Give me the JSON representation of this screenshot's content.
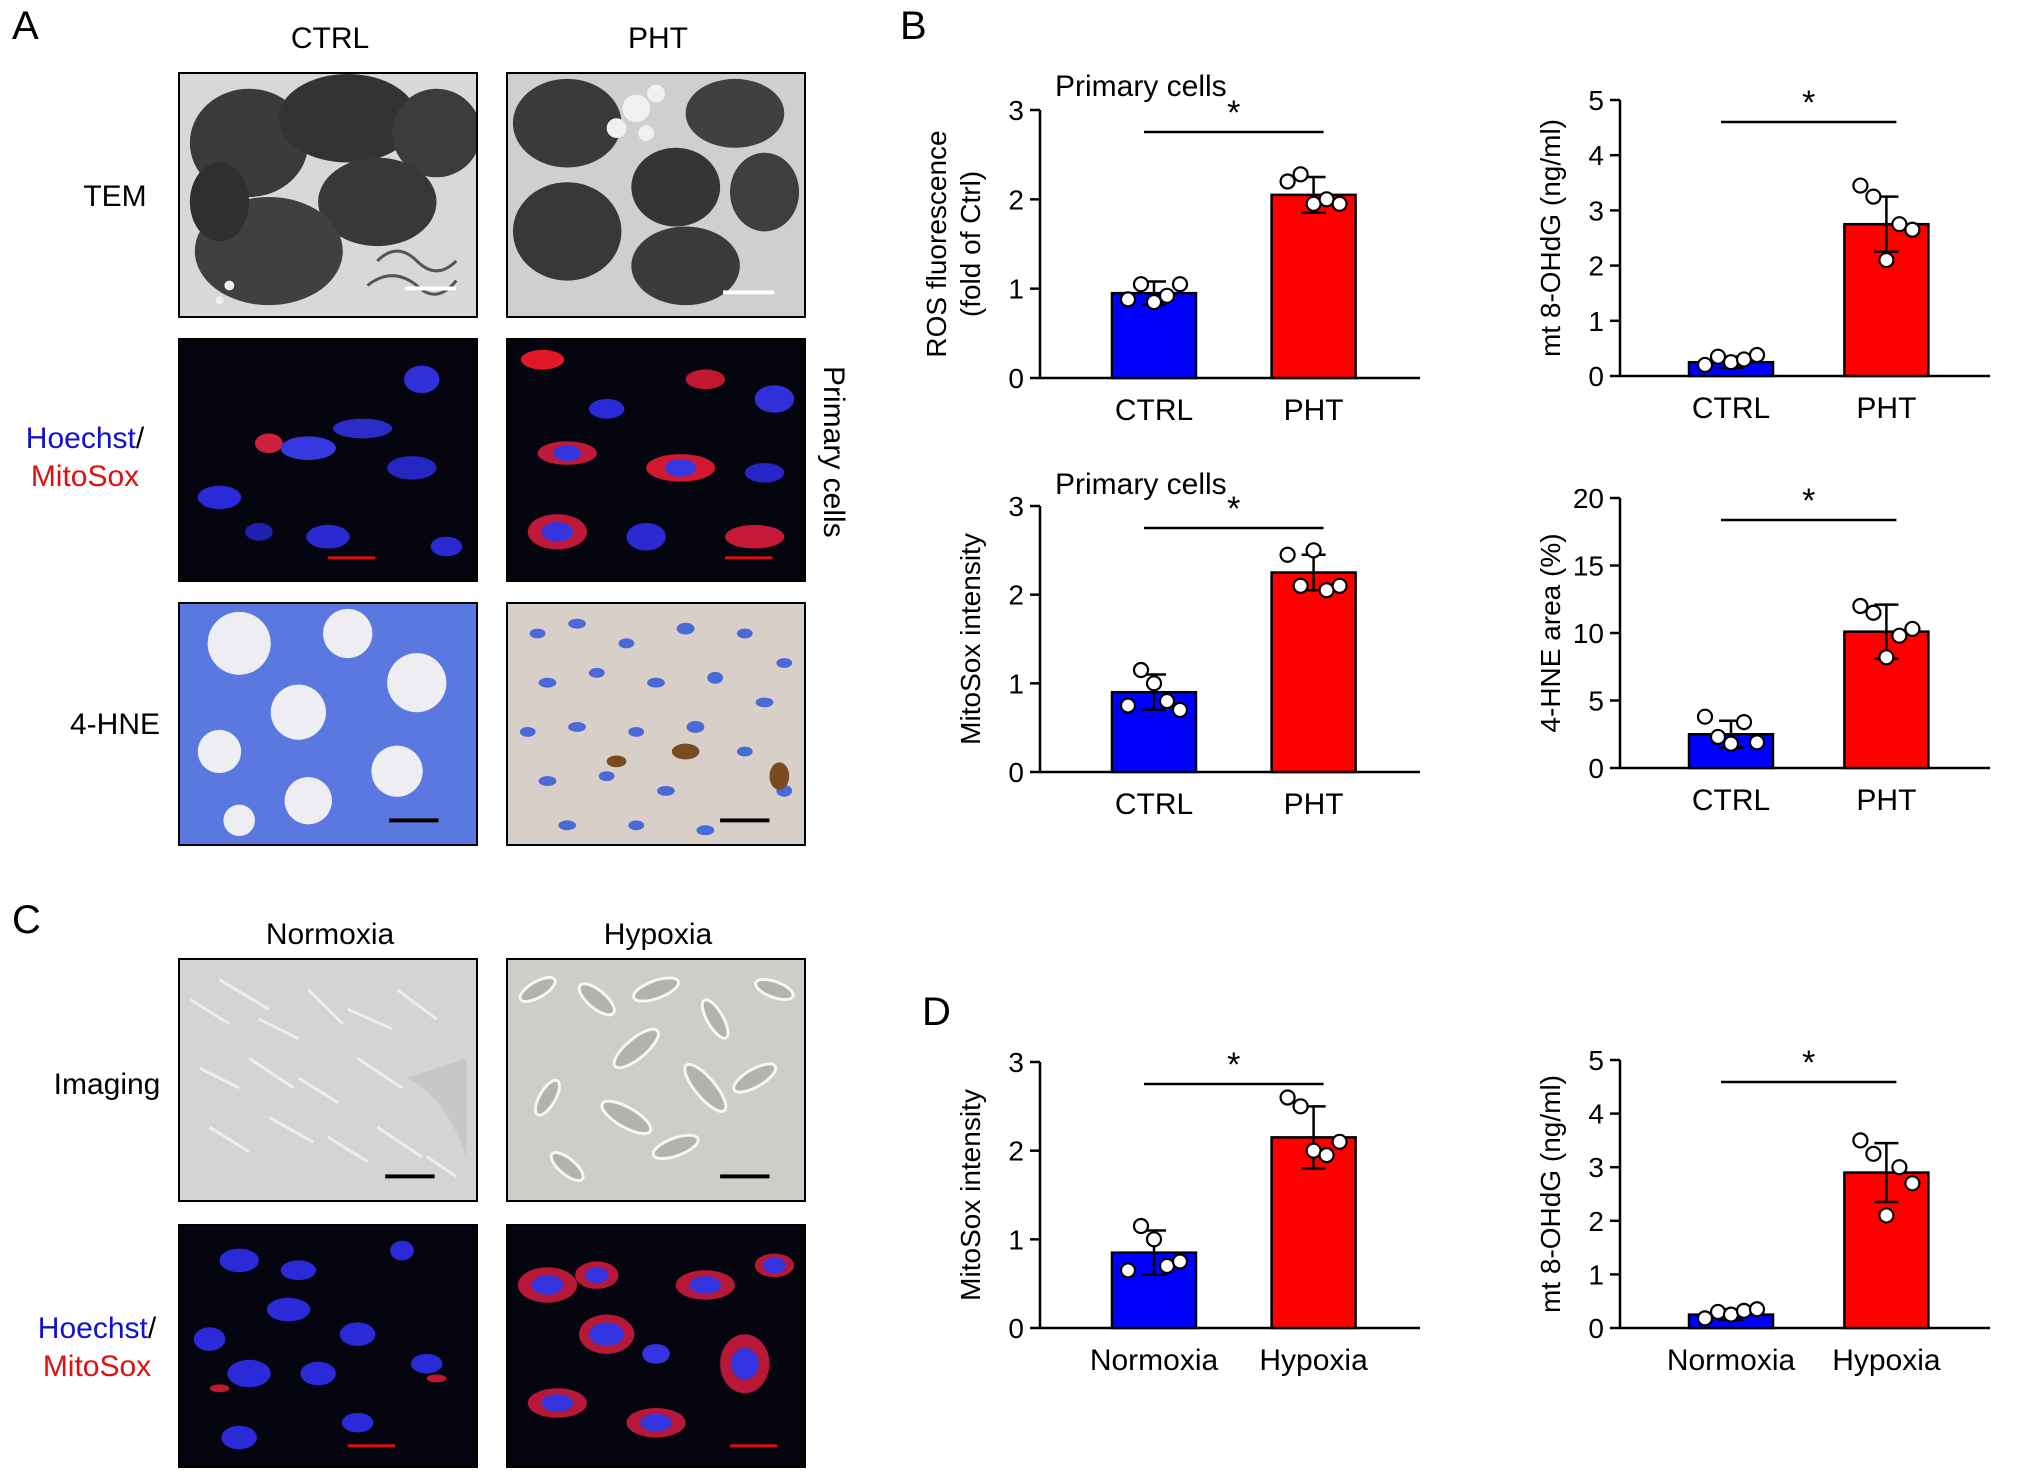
{
  "panels": {
    "A": {
      "letter": "A",
      "columns": [
        "CTRL",
        "PHT"
      ],
      "rows": {
        "tem": "TEM",
        "hoechst": "Hoechst",
        "slash": "/",
        "mitosox": "MitoSox",
        "hne": "4-HNE"
      },
      "side_label": "Primary cells"
    },
    "B": {
      "letter": "B"
    },
    "C": {
      "letter": "C",
      "columns": [
        "Normoxia",
        "Hypoxia"
      ],
      "rows": {
        "imaging": "Imaging",
        "hoechst": "Hoechst",
        "slash": "/",
        "mitosox": "MitoSox"
      }
    },
    "D": {
      "letter": "D"
    }
  },
  "colors": {
    "ctrl_bar": "#0000ff",
    "treat_bar": "#ff0000",
    "hoechst": "#1010d0",
    "mitosox": "#e01010"
  },
  "chart_data": [
    {
      "id": "b1",
      "type": "bar",
      "title": "Primary cells",
      "categories": [
        "CTRL",
        "PHT"
      ],
      "values": [
        0.95,
        2.05
      ],
      "errors": [
        0.13,
        0.2
      ],
      "points": [
        [
          0.88,
          1.05,
          0.85,
          0.92,
          1.05
        ],
        [
          2.2,
          2.28,
          1.95,
          2.0,
          1.95
        ]
      ],
      "ylabel": [
        "ROS fluorescence",
        "(fold of Ctrl)"
      ],
      "ylim": [
        0,
        3
      ],
      "yticks": [
        0,
        1,
        2,
        3
      ],
      "significance": "*"
    },
    {
      "id": "b2",
      "type": "bar",
      "title": "",
      "categories": [
        "CTRL",
        "PHT"
      ],
      "values": [
        0.25,
        2.75
      ],
      "errors": [
        0.1,
        0.5
      ],
      "points": [
        [
          0.2,
          0.35,
          0.25,
          0.3,
          0.38
        ],
        [
          3.45,
          3.25,
          2.1,
          2.75,
          2.65
        ]
      ],
      "ylabel": [
        "mt 8-OHdG (ng/ml)"
      ],
      "ylim": [
        0,
        5
      ],
      "yticks": [
        0,
        1,
        2,
        3,
        4,
        5
      ],
      "significance": "*"
    },
    {
      "id": "b3",
      "type": "bar",
      "title": "Primary cells",
      "categories": [
        "CTRL",
        "PHT"
      ],
      "values": [
        0.9,
        2.25
      ],
      "errors": [
        0.2,
        0.2
      ],
      "points": [
        [
          0.75,
          1.15,
          1.0,
          0.8,
          0.7
        ],
        [
          2.45,
          2.1,
          2.5,
          2.05,
          2.1
        ]
      ],
      "ylabel": [
        "MitoSox intensity"
      ],
      "ylim": [
        0,
        3
      ],
      "yticks": [
        0,
        1,
        2,
        3
      ],
      "significance": "*"
    },
    {
      "id": "b4",
      "type": "bar",
      "title": "",
      "categories": [
        "CTRL",
        "PHT"
      ],
      "values": [
        2.5,
        10.1
      ],
      "errors": [
        1.0,
        2.0
      ],
      "points": [
        [
          3.8,
          2.3,
          1.8,
          3.4,
          1.9
        ],
        [
          12.0,
          11.5,
          8.2,
          9.8,
          10.3
        ]
      ],
      "ylabel": [
        "4-HNE area (%)"
      ],
      "ylim": [
        0,
        20
      ],
      "yticks": [
        0,
        5,
        10,
        15,
        20
      ],
      "significance": "*"
    },
    {
      "id": "d1",
      "type": "bar",
      "title": "",
      "categories": [
        "Normoxia",
        "Hypoxia"
      ],
      "values": [
        0.85,
        2.15
      ],
      "errors": [
        0.25,
        0.35
      ],
      "points": [
        [
          0.65,
          1.15,
          1.0,
          0.7,
          0.75
        ],
        [
          2.6,
          2.5,
          2.0,
          1.95,
          2.1
        ]
      ],
      "ylabel": [
        "MitoSox intensity"
      ],
      "ylim": [
        0,
        3
      ],
      "yticks": [
        0,
        1,
        2,
        3
      ],
      "significance": "*"
    },
    {
      "id": "d2",
      "type": "bar",
      "title": "",
      "categories": [
        "Normoxia",
        "Hypoxia"
      ],
      "values": [
        0.25,
        2.9
      ],
      "errors": [
        0.1,
        0.55
      ],
      "points": [
        [
          0.18,
          0.3,
          0.25,
          0.32,
          0.35
        ],
        [
          3.5,
          3.25,
          2.1,
          3.0,
          2.7
        ]
      ],
      "ylabel": [
        "mt 8-OHdG (ng/ml)"
      ],
      "ylim": [
        0,
        5
      ],
      "yticks": [
        0,
        1,
        2,
        3,
        4,
        5
      ],
      "significance": "*"
    }
  ]
}
